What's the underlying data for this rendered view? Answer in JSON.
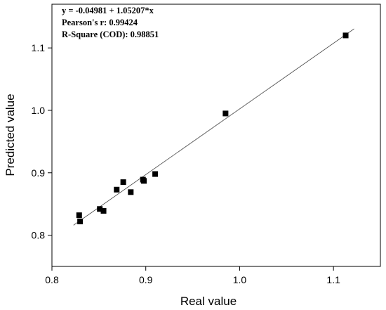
{
  "chart_data": {
    "type": "scatter",
    "xlabel": "Real value",
    "ylabel": "Predicted value",
    "xlim": [
      0.8,
      1.15
    ],
    "ylim": [
      0.75,
      1.17
    ],
    "xticks": [
      0.8,
      0.9,
      1.0,
      1.1
    ],
    "yticks": [
      0.8,
      0.9,
      1.0,
      1.1
    ],
    "xtick_labels": [
      "0.8",
      "0.9",
      "1.0",
      "1.1"
    ],
    "ytick_labels": [
      "0.8",
      "0.9",
      "1.0",
      "1.1"
    ],
    "grid": false,
    "marker": "square",
    "marker_color": "#000000",
    "fit_line": {
      "intercept": -0.04981,
      "slope": 1.05207,
      "color": "#555555"
    },
    "annotations": [
      "y = -0.04981 + 1.05207*x",
      "Pearson's r: 0.99424",
      "R-Square (COD): 0.98851"
    ],
    "points": [
      {
        "x": 0.829,
        "y": 0.832
      },
      {
        "x": 0.83,
        "y": 0.822
      },
      {
        "x": 0.851,
        "y": 0.842
      },
      {
        "x": 0.855,
        "y": 0.839
      },
      {
        "x": 0.869,
        "y": 0.873
      },
      {
        "x": 0.876,
        "y": 0.885
      },
      {
        "x": 0.884,
        "y": 0.869
      },
      {
        "x": 0.897,
        "y": 0.889
      },
      {
        "x": 0.898,
        "y": 0.887
      },
      {
        "x": 0.91,
        "y": 0.898
      },
      {
        "x": 0.985,
        "y": 0.995
      },
      {
        "x": 1.113,
        "y": 1.12
      }
    ]
  }
}
